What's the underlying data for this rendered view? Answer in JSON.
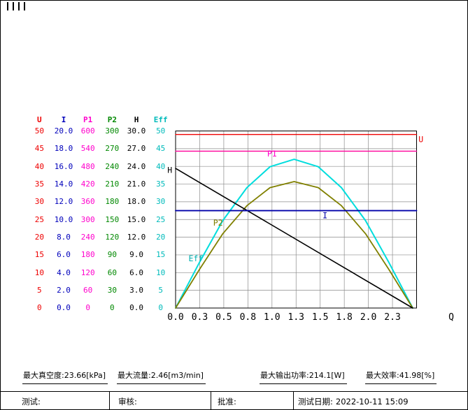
{
  "page": {
    "bg": "#ffffff",
    "border_color": "#000000"
  },
  "scale_table": {
    "headers": [
      {
        "label": "U",
        "color": "#ee0000"
      },
      {
        "label": "I",
        "color": "#0000bb"
      },
      {
        "label": "P1",
        "color": "#ff00cc"
      },
      {
        "label": "P2",
        "color": "#008800"
      },
      {
        "label": "H",
        "color": "#000000"
      },
      {
        "label": "Eff",
        "color": "#00bbbb"
      }
    ],
    "rows": [
      [
        "50",
        "20.0",
        "600",
        "300",
        "30.0",
        "50"
      ],
      [
        "45",
        "18.0",
        "540",
        "270",
        "27.0",
        "45"
      ],
      [
        "40",
        "16.0",
        "480",
        "240",
        "24.0",
        "40"
      ],
      [
        "35",
        "14.0",
        "420",
        "210",
        "21.0",
        "35"
      ],
      [
        "30",
        "12.0",
        "360",
        "180",
        "18.0",
        "30"
      ],
      [
        "25",
        "10.0",
        "300",
        "150",
        "15.0",
        "25"
      ],
      [
        "20",
        "8.0",
        "240",
        "120",
        "12.0",
        "20"
      ],
      [
        "15",
        "6.0",
        "180",
        "90",
        "9.0",
        "15"
      ],
      [
        "10",
        "4.0",
        "120",
        "60",
        "6.0",
        "10"
      ],
      [
        "5",
        "2.0",
        "60",
        "30",
        "3.0",
        "5"
      ],
      [
        "0",
        "0.0",
        "0",
        "0",
        "0.0",
        "0"
      ]
    ]
  },
  "chart_data": {
    "type": "line",
    "xlabel": "Q",
    "x_range": [
      0,
      2.5
    ],
    "x_ticks": [
      "0.0",
      "0.3",
      "0.5",
      "0.8",
      "1.0",
      "1.3",
      "1.5",
      "1.8",
      "2.0",
      "2.3"
    ],
    "y_norm_range": [
      0,
      50
    ],
    "grid": true,
    "axis_scales": {
      "U_max": 50,
      "I_max": 20,
      "P1_max": 600,
      "P2_max": 300,
      "H_max": 30,
      "Eff_max": 50
    },
    "series": [
      {
        "name": "Eff",
        "color": "#00dddd",
        "width": 2,
        "points": [
          [
            0,
            0
          ],
          [
            0.25,
            13.0
          ],
          [
            0.49,
            24.7
          ],
          [
            0.74,
            34.0
          ],
          [
            0.98,
            39.9
          ],
          [
            1.23,
            42.0
          ],
          [
            1.48,
            39.9
          ],
          [
            1.72,
            34.0
          ],
          [
            1.97,
            24.7
          ],
          [
            2.21,
            13.0
          ],
          [
            2.46,
            0
          ]
        ],
        "label": {
          "text": "Eff",
          "q": 0.21,
          "v": 13.2,
          "color": "#00b0b0"
        }
      },
      {
        "name": "P2",
        "color": "#808000",
        "width": 1.8,
        "points": [
          [
            0,
            0
          ],
          [
            0.25,
            11.0
          ],
          [
            0.49,
            21.0
          ],
          [
            0.74,
            28.9
          ],
          [
            0.98,
            34.0
          ],
          [
            1.23,
            35.7
          ],
          [
            1.48,
            34.0
          ],
          [
            1.72,
            28.9
          ],
          [
            1.97,
            21.0
          ],
          [
            2.21,
            11.0
          ],
          [
            2.46,
            0
          ]
        ],
        "label": {
          "text": "P2",
          "q": 0.44,
          "v": 23.3
        }
      },
      {
        "name": "H",
        "color": "#000000",
        "width": 1.6,
        "points": [
          [
            0,
            39.43
          ],
          [
            2.46,
            0
          ]
        ],
        "label": {
          "text": "H",
          "q": -0.06,
          "v": 38.2
        }
      },
      {
        "name": "I",
        "color": "#0000aa",
        "width": 1.8,
        "points": [
          [
            0,
            27.5
          ],
          [
            2.5,
            27.5
          ]
        ],
        "label": {
          "text": "I",
          "q": 1.55,
          "v": 25.3
        }
      },
      {
        "name": "P1",
        "color": "#ff0099",
        "width": 1.4,
        "points": [
          [
            0,
            44.3
          ],
          [
            2.5,
            44.3
          ]
        ],
        "label": {
          "text": "P1",
          "q": 1.0,
          "v": 42.8,
          "color": "#ff00cc"
        }
      },
      {
        "name": "U",
        "color": "#ee0000",
        "width": 1.4,
        "points": [
          [
            0,
            49.0
          ],
          [
            2.5,
            49.0
          ]
        ],
        "label": {
          "text": "U",
          "q": 2.52,
          "v": 46.8,
          "anchor": "start"
        }
      }
    ]
  },
  "summary": {
    "max_vacuum": {
      "label": "最大真空度:",
      "value": "23.66[kPa]"
    },
    "max_flow": {
      "label": "最大流量:",
      "value": "2.46[m3/min]"
    },
    "max_output_power": {
      "label": "最大输出功率:",
      "value": "214.1[W]"
    },
    "max_efficiency": {
      "label": "最大效率:",
      "value": "41.98[%]"
    }
  },
  "footer": {
    "test_label": "测试:",
    "review_label": "审核:",
    "approve_label": "批准:",
    "date_label": "测试日期:",
    "date_value": "2022-10-11 15:09"
  }
}
